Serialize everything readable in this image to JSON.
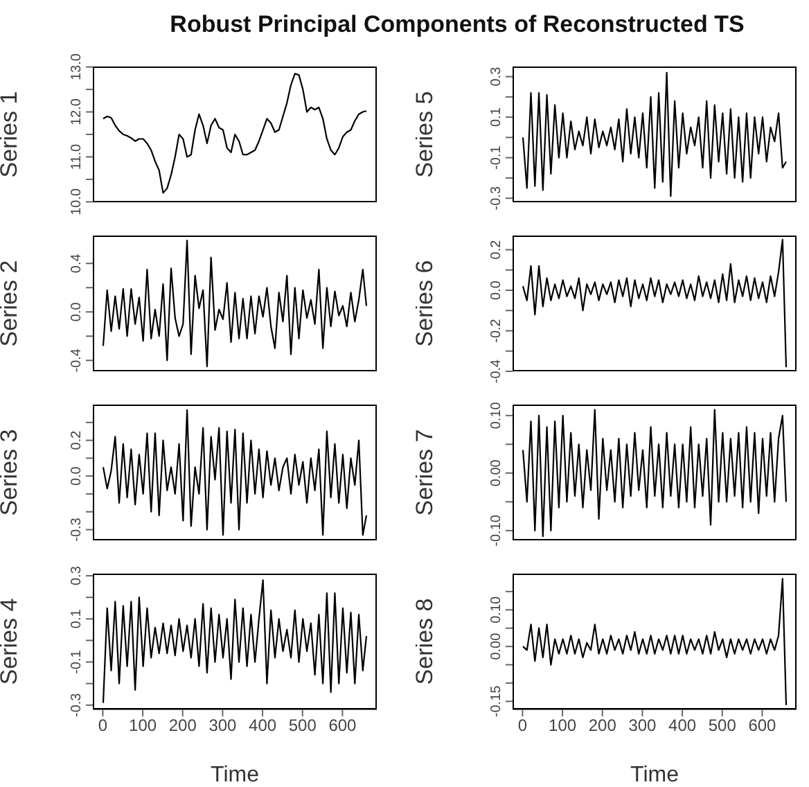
{
  "chart_data": [
    {
      "type": "line",
      "title": "Robust Principal Components of Reconstructed TS",
      "ylabel": "Series 1",
      "tick_labels": "y",
      "xlim": [
        -25,
        686
      ],
      "ylim": [
        9.99,
        13.01
      ],
      "yticks": [
        {
          "value": 10,
          "label": "10.0"
        },
        {
          "value": 10.5,
          "label": null
        },
        {
          "value": 11,
          "label": "11.0"
        },
        {
          "value": 11.5,
          "label": null
        },
        {
          "value": 12,
          "label": "12.0"
        },
        {
          "value": 12.5,
          "label": null
        },
        {
          "value": 13,
          "label": "13.0"
        }
      ],
      "x": [
        1,
        11,
        21,
        31,
        41,
        51,
        61,
        71,
        81,
        91,
        101,
        111,
        121,
        131,
        141,
        151,
        161,
        171,
        181,
        191,
        201,
        211,
        221,
        231,
        241,
        251,
        261,
        271,
        281,
        291,
        301,
        311,
        321,
        331,
        341,
        351,
        361,
        371,
        381,
        391,
        401,
        411,
        421,
        431,
        441,
        451,
        461,
        471,
        481,
        491,
        501,
        511,
        521,
        531,
        541,
        551,
        561,
        571,
        581,
        591,
        601,
        611,
        621,
        631,
        641,
        651,
        660
      ],
      "series": [
        {
          "color": "#000000",
          "values": [
            11.85,
            11.9,
            11.87,
            11.7,
            11.58,
            11.5,
            11.47,
            11.42,
            11.35,
            11.4,
            11.4,
            11.3,
            11.15,
            10.9,
            10.7,
            10.2,
            10.3,
            10.6,
            11.0,
            11.5,
            11.4,
            11.0,
            11.05,
            11.6,
            11.95,
            11.7,
            11.3,
            11.7,
            11.85,
            11.65,
            11.6,
            11.2,
            11.1,
            11.5,
            11.35,
            11.05,
            11.05,
            11.1,
            11.15,
            11.35,
            11.6,
            11.85,
            11.75,
            11.55,
            11.6,
            11.9,
            12.2,
            12.6,
            12.85,
            12.82,
            12.5,
            12.0,
            12.1,
            12.05,
            12.1,
            11.85,
            11.4,
            11.15,
            11.05,
            11.2,
            11.45,
            11.55,
            11.6,
            11.8,
            11.95,
            12.0,
            12.02
          ]
        }
      ]
    },
    {
      "type": "line",
      "ylabel": "Series 2",
      "tick_labels": "y",
      "xlim": [
        -25,
        686
      ],
      "ylim": [
        -0.49,
        0.63
      ],
      "yticks": [
        {
          "value": -0.4,
          "label": "-0.4"
        },
        {
          "value": -0.2,
          "label": null
        },
        {
          "value": 0,
          "label": "0.0"
        },
        {
          "value": 0.2,
          "label": null
        },
        {
          "value": 0.4,
          "label": "0.4"
        }
      ],
      "x": [
        1,
        11,
        21,
        31,
        41,
        51,
        61,
        71,
        81,
        91,
        101,
        111,
        121,
        131,
        141,
        151,
        161,
        171,
        181,
        191,
        201,
        211,
        221,
        231,
        241,
        251,
        261,
        271,
        281,
        291,
        301,
        311,
        321,
        331,
        341,
        351,
        361,
        371,
        381,
        391,
        401,
        411,
        421,
        431,
        441,
        451,
        461,
        471,
        481,
        491,
        501,
        511,
        521,
        531,
        541,
        551,
        561,
        571,
        581,
        591,
        601,
        611,
        621,
        631,
        641,
        651,
        660
      ],
      "series": [
        {
          "color": "#000000",
          "values": [
            -0.28,
            0.18,
            -0.16,
            0.13,
            -0.14,
            0.19,
            -0.2,
            0.19,
            -0.1,
            0.12,
            -0.24,
            0.35,
            -0.22,
            0.02,
            -0.2,
            0.23,
            -0.4,
            0.36,
            -0.05,
            -0.2,
            -0.1,
            0.59,
            -0.35,
            0.3,
            0.03,
            0.18,
            -0.45,
            0.45,
            -0.15,
            0.02,
            -0.06,
            0.24,
            -0.25,
            0.16,
            -0.22,
            0.11,
            -0.22,
            0.13,
            -0.18,
            0.13,
            -0.04,
            0.2,
            -0.12,
            -0.3,
            0.16,
            -0.08,
            0.3,
            -0.35,
            0.2,
            -0.22,
            0.18,
            -0.05,
            0.1,
            -0.1,
            0.35,
            -0.3,
            0.2,
            -0.12,
            0.17,
            -0.03,
            0.05,
            -0.12,
            0.16,
            -0.08,
            0.1,
            0.35,
            0.05
          ]
        }
      ]
    },
    {
      "type": "line",
      "ylabel": "Series 3",
      "tick_labels": "y",
      "xlim": [
        -25,
        686
      ],
      "ylim": [
        -0.36,
        0.4
      ],
      "yticks": [
        {
          "value": -0.3,
          "label": "-0.3"
        },
        {
          "value": -0.2,
          "label": null
        },
        {
          "value": -0.1,
          "label": null
        },
        {
          "value": 0,
          "label": "0.0"
        },
        {
          "value": 0.1,
          "label": null
        },
        {
          "value": 0.2,
          "label": "0.2"
        },
        {
          "value": 0.3,
          "label": null
        }
      ],
      "x": [
        1,
        11,
        21,
        31,
        41,
        51,
        61,
        71,
        81,
        91,
        101,
        111,
        121,
        131,
        141,
        151,
        161,
        171,
        181,
        191,
        201,
        211,
        221,
        231,
        241,
        251,
        261,
        271,
        281,
        291,
        301,
        311,
        321,
        331,
        341,
        351,
        361,
        371,
        381,
        391,
        401,
        411,
        421,
        431,
        441,
        451,
        461,
        471,
        481,
        491,
        501,
        511,
        521,
        531,
        541,
        551,
        561,
        571,
        581,
        591,
        601,
        611,
        621,
        631,
        641,
        651,
        660
      ],
      "series": [
        {
          "color": "#000000",
          "values": [
            0.05,
            -0.07,
            0.03,
            0.22,
            -0.15,
            0.18,
            -0.12,
            0.15,
            -0.16,
            0.12,
            -0.1,
            0.24,
            -0.2,
            0.24,
            -0.22,
            0.2,
            -0.08,
            0.05,
            -0.1,
            0.18,
            -0.25,
            0.37,
            -0.28,
            0.05,
            -0.1,
            0.27,
            -0.3,
            0.22,
            -0.02,
            0.27,
            -0.33,
            0.25,
            -0.15,
            0.26,
            -0.3,
            0.24,
            -0.15,
            0.2,
            -0.1,
            0.15,
            -0.12,
            0.14,
            -0.05,
            0.1,
            -0.08,
            0.05,
            0.1,
            -0.1,
            0.12,
            -0.05,
            0.08,
            -0.15,
            0.1,
            -0.08,
            0.15,
            -0.33,
            0.25,
            -0.12,
            0.18,
            -0.15,
            0.12,
            -0.18,
            0.1,
            -0.05,
            0.2,
            -0.33,
            -0.22
          ]
        }
      ]
    },
    {
      "type": "line",
      "ylabel": "Series 4",
      "xlabel": "Time",
      "xlim": [
        -25,
        686
      ],
      "ylim": [
        -0.32,
        0.31
      ],
      "xticks": [
        0,
        100,
        200,
        300,
        400,
        500,
        600
      ],
      "yticks": [
        {
          "value": -0.3,
          "label": "-0.3"
        },
        {
          "value": -0.2,
          "label": null
        },
        {
          "value": -0.1,
          "label": "-0.1"
        },
        {
          "value": 0,
          "label": null
        },
        {
          "value": 0.1,
          "label": "0.1"
        },
        {
          "value": 0.2,
          "label": null
        },
        {
          "value": 0.3,
          "label": "0.3"
        }
      ],
      "x": [
        1,
        11,
        21,
        31,
        41,
        51,
        61,
        71,
        81,
        91,
        101,
        111,
        121,
        131,
        141,
        151,
        161,
        171,
        181,
        191,
        201,
        211,
        221,
        231,
        241,
        251,
        261,
        271,
        281,
        291,
        301,
        311,
        321,
        331,
        341,
        351,
        361,
        371,
        381,
        391,
        401,
        411,
        421,
        431,
        441,
        451,
        461,
        471,
        481,
        491,
        501,
        511,
        521,
        531,
        541,
        551,
        561,
        571,
        581,
        591,
        601,
        611,
        621,
        631,
        641,
        651,
        660
      ],
      "series": [
        {
          "color": "#000000",
          "values": [
            -0.29,
            0.15,
            -0.14,
            0.18,
            -0.2,
            0.16,
            -0.12,
            0.18,
            -0.23,
            0.2,
            -0.12,
            0.15,
            -0.08,
            0.06,
            -0.06,
            0.08,
            -0.06,
            0.07,
            -0.07,
            0.1,
            -0.05,
            0.07,
            -0.08,
            0.1,
            -0.12,
            0.17,
            -0.15,
            0.15,
            -0.1,
            0.12,
            -0.08,
            0.1,
            -0.18,
            0.19,
            -0.1,
            0.15,
            -0.12,
            0.12,
            -0.1,
            0.1,
            0.28,
            -0.2,
            0.14,
            -0.08,
            0.1,
            -0.05,
            0.05,
            -0.08,
            0.14,
            -0.1,
            0.1,
            -0.05,
            0.08,
            -0.16,
            0.12,
            -0.2,
            0.22,
            -0.24,
            0.22,
            -0.2,
            0.15,
            -0.15,
            0.13,
            -0.2,
            0.12,
            -0.14,
            0.02
          ]
        }
      ]
    },
    {
      "type": "line",
      "ylabel": "Series 5",
      "tick_labels": "y",
      "xlim": [
        -25,
        686
      ],
      "ylim": [
        -0.32,
        0.35
      ],
      "yticks": [
        {
          "value": -0.3,
          "label": "-0.3"
        },
        {
          "value": -0.2,
          "label": null
        },
        {
          "value": -0.1,
          "label": "-0.1"
        },
        {
          "value": 0,
          "label": null
        },
        {
          "value": 0.1,
          "label": "0.1"
        },
        {
          "value": 0.2,
          "label": null
        },
        {
          "value": 0.3,
          "label": "0.3"
        }
      ],
      "x": [
        1,
        11,
        21,
        31,
        41,
        51,
        61,
        71,
        81,
        91,
        101,
        111,
        121,
        131,
        141,
        151,
        161,
        171,
        181,
        191,
        201,
        211,
        221,
        231,
        241,
        251,
        261,
        271,
        281,
        291,
        301,
        311,
        321,
        331,
        341,
        351,
        361,
        371,
        381,
        391,
        401,
        411,
        421,
        431,
        441,
        451,
        461,
        471,
        481,
        491,
        501,
        511,
        521,
        531,
        541,
        551,
        561,
        571,
        581,
        591,
        601,
        611,
        621,
        631,
        641,
        651,
        660
      ],
      "series": [
        {
          "color": "#000000",
          "values": [
            0.0,
            -0.25,
            0.22,
            -0.24,
            0.22,
            -0.26,
            0.21,
            -0.18,
            0.16,
            -0.1,
            0.12,
            -0.1,
            0.08,
            -0.06,
            0.03,
            -0.04,
            0.1,
            -0.08,
            0.09,
            -0.05,
            0.03,
            -0.04,
            0.05,
            -0.06,
            0.09,
            -0.12,
            0.14,
            -0.08,
            0.1,
            -0.1,
            0.12,
            -0.15,
            0.2,
            -0.25,
            0.22,
            -0.22,
            0.32,
            -0.29,
            0.18,
            -0.15,
            0.12,
            -0.08,
            0.05,
            -0.04,
            0.1,
            -0.15,
            0.18,
            -0.2,
            0.16,
            -0.12,
            0.12,
            -0.18,
            0.14,
            -0.2,
            0.1,
            -0.22,
            0.12,
            -0.2,
            0.1,
            -0.08,
            0.1,
            -0.12,
            0.05,
            -0.02,
            0.12,
            -0.15,
            -0.12
          ]
        }
      ]
    },
    {
      "type": "line",
      "ylabel": "Series 6",
      "tick_labels": "y",
      "xlim": [
        -25,
        686
      ],
      "ylim": [
        -0.4,
        0.27
      ],
      "yticks": [
        {
          "value": -0.4,
          "label": "-0.4"
        },
        {
          "value": -0.3,
          "label": null
        },
        {
          "value": -0.2,
          "label": "-0.2"
        },
        {
          "value": -0.1,
          "label": null
        },
        {
          "value": 0,
          "label": "0.0"
        },
        {
          "value": 0.1,
          "label": null
        },
        {
          "value": 0.2,
          "label": "0.2"
        }
      ],
      "x": [
        1,
        11,
        21,
        31,
        41,
        51,
        61,
        71,
        81,
        91,
        101,
        111,
        121,
        131,
        141,
        151,
        161,
        171,
        181,
        191,
        201,
        211,
        221,
        231,
        241,
        251,
        261,
        271,
        281,
        291,
        301,
        311,
        321,
        331,
        341,
        351,
        361,
        371,
        381,
        391,
        401,
        411,
        421,
        431,
        441,
        451,
        461,
        471,
        481,
        491,
        501,
        511,
        521,
        531,
        541,
        551,
        561,
        571,
        581,
        591,
        601,
        611,
        621,
        631,
        641,
        651,
        660
      ],
      "series": [
        {
          "color": "#000000",
          "values": [
            0.02,
            -0.05,
            0.12,
            -0.12,
            0.12,
            -0.08,
            0.06,
            -0.05,
            0.03,
            -0.04,
            0.05,
            -0.03,
            0.02,
            -0.04,
            0.06,
            -0.1,
            0.03,
            -0.02,
            0.04,
            -0.05,
            0.03,
            -0.02,
            0.04,
            -0.06,
            0.05,
            -0.03,
            0.06,
            -0.08,
            0.05,
            -0.04,
            0.03,
            -0.05,
            0.06,
            -0.03,
            0.05,
            -0.06,
            0.03,
            -0.02,
            0.04,
            -0.03,
            0.05,
            -0.04,
            0.03,
            -0.05,
            0.07,
            -0.03,
            0.04,
            -0.04,
            0.05,
            -0.06,
            0.08,
            -0.05,
            0.13,
            -0.06,
            0.05,
            -0.03,
            0.07,
            -0.05,
            0.06,
            -0.04,
            0.04,
            -0.06,
            0.07,
            -0.03,
            0.09,
            0.25,
            -0.38
          ]
        }
      ]
    },
    {
      "type": "line",
      "ylabel": "Series 7",
      "tick_labels": "y",
      "xlim": [
        -25,
        686
      ],
      "ylim": [
        -0.117,
        0.119
      ],
      "yticks": [
        {
          "value": -0.1,
          "label": "-0.10"
        },
        {
          "value": -0.05,
          "label": null
        },
        {
          "value": 0,
          "label": "0.00"
        },
        {
          "value": 0.05,
          "label": null
        },
        {
          "value": 0.1,
          "label": "0.10"
        }
      ],
      "x": [
        1,
        11,
        21,
        31,
        41,
        51,
        61,
        71,
        81,
        91,
        101,
        111,
        121,
        131,
        141,
        151,
        161,
        171,
        181,
        191,
        201,
        211,
        221,
        231,
        241,
        251,
        261,
        271,
        281,
        291,
        301,
        311,
        321,
        331,
        341,
        351,
        361,
        371,
        381,
        391,
        401,
        411,
        421,
        431,
        441,
        451,
        461,
        471,
        481,
        491,
        501,
        511,
        521,
        531,
        541,
        551,
        561,
        571,
        581,
        591,
        601,
        611,
        621,
        631,
        641,
        651,
        660
      ],
      "series": [
        {
          "color": "#000000",
          "values": [
            0.04,
            -0.05,
            0.09,
            -0.1,
            0.1,
            -0.11,
            0.08,
            -0.1,
            0.09,
            -0.06,
            0.1,
            -0.05,
            0.07,
            -0.04,
            0.05,
            -0.06,
            0.04,
            -0.03,
            0.11,
            -0.08,
            0.06,
            -0.03,
            0.04,
            -0.05,
            0.06,
            -0.06,
            0.05,
            -0.04,
            0.07,
            -0.03,
            0.04,
            -0.06,
            0.08,
            -0.04,
            0.05,
            -0.06,
            0.07,
            -0.04,
            0.05,
            -0.06,
            0.05,
            -0.05,
            0.08,
            -0.06,
            0.05,
            -0.04,
            0.06,
            -0.09,
            0.11,
            -0.05,
            0.07,
            -0.05,
            0.06,
            -0.04,
            0.07,
            -0.06,
            0.08,
            -0.05,
            0.07,
            -0.07,
            0.06,
            -0.04,
            0.07,
            -0.05,
            0.06,
            0.1,
            -0.05
          ]
        }
      ]
    },
    {
      "type": "line",
      "ylabel": "Series 8",
      "xlabel": "Time",
      "xlim": [
        -25,
        686
      ],
      "ylim": [
        -0.172,
        0.199
      ],
      "xticks": [
        0,
        100,
        200,
        300,
        400,
        500,
        600
      ],
      "yticks": [
        {
          "value": -0.15,
          "label": "-0.15"
        },
        {
          "value": -0.1,
          "label": null
        },
        {
          "value": -0.05,
          "label": null
        },
        {
          "value": 0,
          "label": "0.00"
        },
        {
          "value": 0.05,
          "label": null
        },
        {
          "value": 0.1,
          "label": "0.10"
        },
        {
          "value": 0.15,
          "label": null
        }
      ],
      "x": [
        1,
        11,
        21,
        31,
        41,
        51,
        61,
        71,
        81,
        91,
        101,
        111,
        121,
        131,
        141,
        151,
        161,
        171,
        181,
        191,
        201,
        211,
        221,
        231,
        241,
        251,
        261,
        271,
        281,
        291,
        301,
        311,
        321,
        331,
        341,
        351,
        361,
        371,
        381,
        391,
        401,
        411,
        421,
        431,
        441,
        451,
        461,
        471,
        481,
        491,
        501,
        511,
        521,
        531,
        541,
        551,
        561,
        571,
        581,
        591,
        601,
        611,
        621,
        631,
        641,
        651,
        660
      ],
      "series": [
        {
          "color": "#000000",
          "values": [
            0.0,
            -0.01,
            0.06,
            -0.04,
            0.05,
            -0.03,
            0.06,
            -0.05,
            0.02,
            -0.02,
            0.02,
            -0.02,
            0.03,
            -0.02,
            0.02,
            -0.03,
            0.01,
            -0.01,
            0.06,
            -0.02,
            0.02,
            -0.02,
            0.03,
            -0.01,
            0.02,
            -0.02,
            0.03,
            -0.01,
            0.04,
            -0.02,
            0.02,
            -0.02,
            0.03,
            -0.02,
            0.02,
            -0.01,
            0.03,
            -0.02,
            0.03,
            -0.02,
            0.03,
            -0.02,
            0.02,
            -0.01,
            0.02,
            -0.02,
            0.03,
            -0.02,
            0.04,
            -0.01,
            0.02,
            -0.03,
            0.02,
            -0.02,
            0.02,
            -0.01,
            0.02,
            -0.02,
            0.02,
            -0.01,
            0.02,
            -0.02,
            0.02,
            -0.01,
            0.03,
            0.185,
            -0.16
          ]
        }
      ]
    }
  ]
}
